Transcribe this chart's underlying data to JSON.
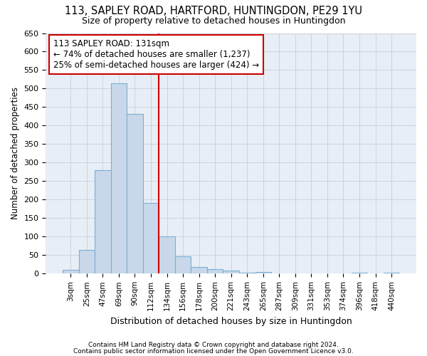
{
  "title": "113, SAPLEY ROAD, HARTFORD, HUNTINGDON, PE29 1YU",
  "subtitle": "Size of property relative to detached houses in Huntingdon",
  "xlabel": "Distribution of detached houses by size in Huntingdon",
  "ylabel": "Number of detached properties",
  "bar_labels": [
    "3sqm",
    "25sqm",
    "47sqm",
    "69sqm",
    "90sqm",
    "112sqm",
    "134sqm",
    "156sqm",
    "178sqm",
    "200sqm",
    "221sqm",
    "243sqm",
    "265sqm",
    "287sqm",
    "309sqm",
    "331sqm",
    "353sqm",
    "374sqm",
    "396sqm",
    "418sqm",
    "440sqm"
  ],
  "bar_values": [
    10,
    65,
    280,
    515,
    432,
    192,
    100,
    46,
    18,
    12,
    8,
    2,
    4,
    0,
    0,
    0,
    0,
    0,
    2,
    0,
    2
  ],
  "bar_color": "#c8d8ea",
  "bar_edge_color": "#7bafd4",
  "vline_x": 6,
  "vline_color": "#cc0000",
  "annotation_text": "113 SAPLEY ROAD: 131sqm\n← 74% of detached houses are smaller (1,237)\n25% of semi-detached houses are larger (424) →",
  "annotation_box_color": "#ffffff",
  "annotation_box_edge": "#cc0000",
  "ylim": [
    0,
    650
  ],
  "yticks": [
    0,
    50,
    100,
    150,
    200,
    250,
    300,
    350,
    400,
    450,
    500,
    550,
    600,
    650
  ],
  "footer1": "Contains HM Land Registry data © Crown copyright and database right 2024.",
  "footer2": "Contains public sector information licensed under the Open Government Licence v3.0.",
  "bg_color": "#ffffff",
  "plot_bg_color": "#e8eef5",
  "grid_color": "#c8d0da"
}
